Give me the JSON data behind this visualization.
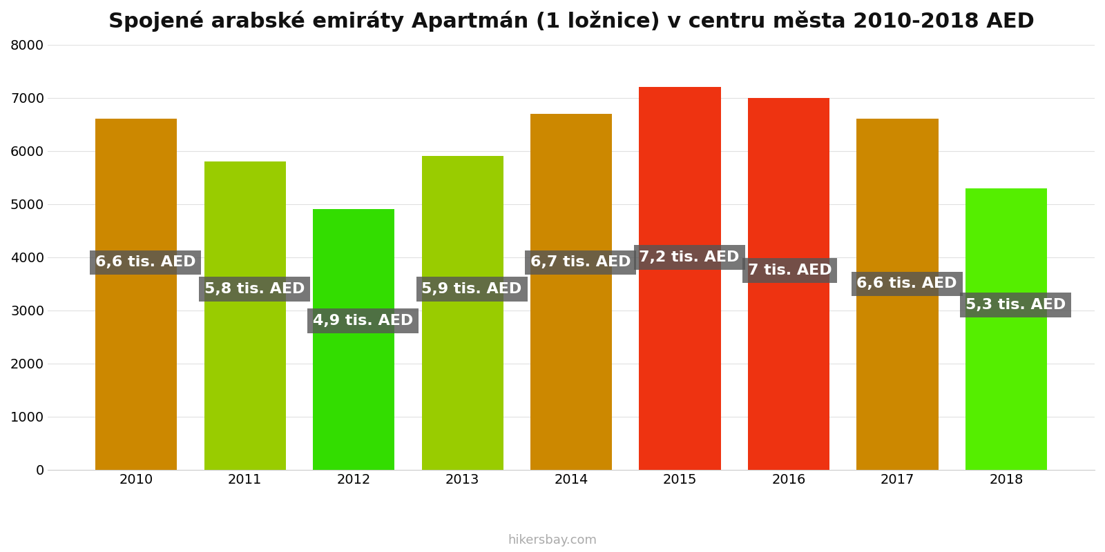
{
  "title": "Spojené arabské emiráty Apartmán (1 ložnice) v centru města 2010-2018 AED",
  "years": [
    2010,
    2011,
    2012,
    2013,
    2014,
    2015,
    2016,
    2017,
    2018
  ],
  "values": [
    6600,
    5800,
    4900,
    5900,
    6700,
    7200,
    7000,
    6600,
    5300
  ],
  "labels": [
    "6,6 tis. AED",
    "5,8 tis. AED",
    "4,9 tis. AED",
    "5,9 tis. AED",
    "6,7 tis. AED",
    "7,2 tis. AED",
    "7 tis. AED",
    "6,6 tis. AED",
    "5,3 tis. AED"
  ],
  "bar_colors": [
    "#CC8800",
    "#99CC00",
    "#33DD00",
    "#99CC00",
    "#CC8800",
    "#EE3311",
    "#EE3311",
    "#CC8800",
    "#55EE00"
  ],
  "ylim": [
    0,
    8000
  ],
  "yticks": [
    0,
    1000,
    2000,
    3000,
    4000,
    5000,
    6000,
    7000,
    8000
  ],
  "label_text_color": "#ffffff",
  "background_color": "#ffffff",
  "watermark": "hikersbay.com",
  "title_fontsize": 22,
  "label_fontsize": 16,
  "tick_fontsize": 14,
  "bar_width": 0.75,
  "label_y_positions": [
    3900,
    3400,
    2800,
    3400,
    3900,
    4000,
    3750,
    3500,
    3100
  ],
  "label_ha": [
    "left",
    "left",
    "left",
    "left",
    "left",
    "left",
    "left",
    "left",
    "left"
  ],
  "label_x_offsets": [
    -0.48,
    -0.48,
    -0.48,
    -0.48,
    -0.48,
    -0.48,
    -0.48,
    -0.48,
    -0.48
  ]
}
